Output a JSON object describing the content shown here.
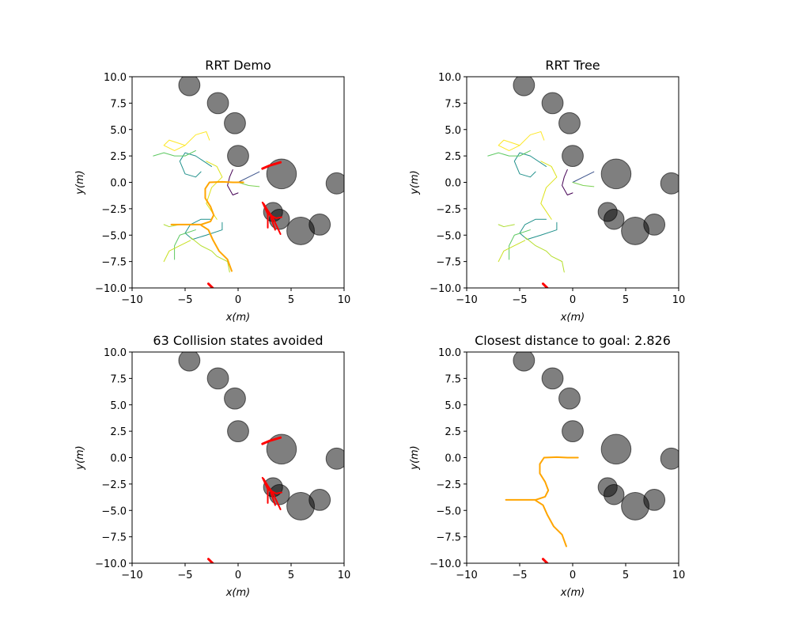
{
  "chart_data": [
    {
      "type": "line",
      "title": "RRT Demo",
      "xlabel": "x(m)",
      "ylabel": "y(m)",
      "xlim": [
        -10,
        10
      ],
      "ylim": [
        -10,
        10
      ],
      "xticks": [
        {
          "value": -10,
          "label": "−10"
        },
        {
          "value": -5,
          "label": "−5"
        },
        0,
        5,
        10
      ],
      "yticks": [
        {
          "value": -10,
          "label": "−10.0"
        },
        {
          "value": -7.5,
          "label": "−7.5"
        },
        {
          "value": -5,
          "label": "−5.0"
        },
        {
          "value": -2.5,
          "label": "−2.5"
        },
        {
          "value": 0,
          "label": "0.0"
        },
        2.5,
        {
          "value": 5,
          "label": "5.0"
        },
        7.5,
        {
          "value": 10,
          "label": "10.0"
        }
      ],
      "obstacles": {
        "color": "#000000",
        "x": [
          -4.6,
          -1.9,
          -0.3,
          0,
          4.1,
          9.3,
          3.3,
          3.9,
          5.9,
          7.7
        ],
        "y": [
          9.2,
          7.5,
          5.6,
          2.5,
          0.8,
          -0.1,
          -2.8,
          -3.5,
          -4.6,
          -4.0
        ],
        "r": [
          1,
          1,
          1,
          1,
          1.4,
          1,
          0.9,
          0.95,
          1.3,
          1
        ]
      },
      "series": [
        {
          "color": "#440154",
          "width": 1,
          "x": [
            -0.5,
            -0.8,
            -1,
            -0.5,
            0
          ],
          "values": [
            1.2,
            0.5,
            -0.3,
            -1.2,
            -1
          ]
        },
        {
          "color": "#3b528b",
          "width": 1,
          "x": [
            0,
            1,
            2
          ],
          "values": [
            0,
            0.5,
            1
          ]
        },
        {
          "color": "#21918c",
          "width": 1,
          "x": [
            -2.5,
            -4,
            -5,
            -5.5,
            -5,
            -4,
            -3.5
          ],
          "values": [
            1.5,
            2.5,
            2.8,
            2,
            0.8,
            0.5,
            1
          ]
        },
        {
          "color": "#fde725",
          "width": 1,
          "x": [
            -5,
            -6.5,
            -7,
            -6,
            -5,
            -4,
            -3,
            -2.7
          ],
          "values": [
            3.5,
            4,
            3.5,
            3,
            3.5,
            4.5,
            4.8,
            4
          ]
        },
        {
          "color": "#5ec962",
          "width": 1,
          "x": [
            -4,
            -5,
            -6,
            -7,
            -8
          ],
          "values": [
            3,
            2.5,
            2.5,
            2.8,
            2.5
          ]
        },
        {
          "color": "#dde318",
          "width": 1,
          "x": [
            -3,
            -2,
            -1.5,
            -2.5,
            -3,
            -2
          ],
          "values": [
            2,
            1.5,
            0.5,
            -0.5,
            -2,
            -3.5
          ]
        },
        {
          "color": "#7ad151",
          "width": 1,
          "x": [
            0,
            1,
            2
          ],
          "values": [
            0,
            -0.3,
            -0.4
          ]
        },
        {
          "color": "#21918c",
          "width": 1,
          "x": [
            -2.5,
            -3.5,
            -4.5,
            -5,
            -4.3,
            -3,
            -1.5,
            -1.5
          ],
          "values": [
            -3.5,
            -3.5,
            -4,
            -4.8,
            -5.4,
            -5,
            -4.5,
            -3.8
          ]
        },
        {
          "color": "#5ec962",
          "width": 1,
          "x": [
            -4,
            -5.5,
            -6,
            -6
          ],
          "values": [
            -4.5,
            -5,
            -6,
            -7.3
          ]
        },
        {
          "color": "#b5de2b",
          "width": 1,
          "x": [
            -4.5,
            -3.5,
            -2.5,
            -2,
            -1,
            -0.8
          ],
          "values": [
            -5.2,
            -6,
            -6.5,
            -7,
            -7.5,
            -8.5
          ]
        },
        {
          "color": "#addc30",
          "width": 1,
          "x": [
            -5.5,
            -6.5,
            -7
          ],
          "values": [
            -4,
            -4.2,
            -4
          ]
        },
        {
          "color": "#c8e020",
          "width": 1,
          "x": [
            -4.5,
            -5.5,
            -6.5,
            -7
          ],
          "values": [
            -5.5,
            -6,
            -6.5,
            -7.5
          ]
        },
        {
          "color": "#ffa500",
          "width": 2,
          "x": [
            0.5,
            -0.5,
            -1.5,
            -2.7,
            -3.1,
            -3.1,
            -2.6,
            -2.3,
            -2.6,
            -3.5,
            -4.5,
            -6.3
          ],
          "values": [
            0,
            0,
            0.05,
            0,
            -0.6,
            -1.5,
            -2.3,
            -3.1,
            -3.7,
            -4,
            -4,
            -4
          ]
        },
        {
          "color": "#ffa500",
          "width": 2,
          "x": [
            -3.5,
            -2.8,
            -2.4,
            -1.8,
            -1,
            -0.6
          ],
          "values": [
            -4.05,
            -4.5,
            -5.4,
            -6.5,
            -7.3,
            -8.4
          ]
        },
        {
          "color": "#ff0000",
          "width": 3,
          "x": [
            2.3,
            3,
            4
          ],
          "values": [
            1.3,
            1.6,
            1.9
          ]
        },
        {
          "color": "#ff0000",
          "width": 2,
          "x": [
            2.3,
            2.8,
            2.8
          ],
          "values": [
            -1.9,
            -3,
            -4.3
          ]
        },
        {
          "color": "#ff0000",
          "width": 2,
          "x": [
            2.4,
            3,
            3.5
          ],
          "values": [
            -2,
            -3,
            -4.5
          ]
        },
        {
          "color": "#ff0000",
          "width": 2,
          "x": [
            2.5,
            3.2,
            4
          ],
          "values": [
            -2.3,
            -3.2,
            -4.9
          ]
        },
        {
          "color": "#ff0000",
          "width": 2,
          "x": [
            2.8,
            3.6,
            4.1
          ],
          "values": [
            -3,
            -3.4,
            -3.3
          ]
        },
        {
          "color": "#ff0000",
          "width": 3,
          "x": [
            -2.8,
            -2.4
          ],
          "values": [
            -9.6,
            -10
          ]
        }
      ]
    },
    {
      "type": "line",
      "title": "RRT Tree",
      "xlabel": "x(m)",
      "ylabel": "y(m)",
      "xlim": [
        -10,
        10
      ],
      "ylim": [
        -10,
        10
      ],
      "xticks": [
        {
          "value": -10,
          "label": "−10"
        },
        {
          "value": -5,
          "label": "−5"
        },
        0,
        5,
        10
      ],
      "yticks": [
        {
          "value": -10,
          "label": "−10.0"
        },
        {
          "value": -7.5,
          "label": "−7.5"
        },
        {
          "value": -5,
          "label": "−5.0"
        },
        {
          "value": -2.5,
          "label": "−2.5"
        },
        {
          "value": 0,
          "label": "0.0"
        },
        2.5,
        {
          "value": 5,
          "label": "5.0"
        },
        7.5,
        {
          "value": 10,
          "label": "10.0"
        }
      ],
      "obstacles": {
        "color": "#000000",
        "x": [
          -4.6,
          -1.9,
          -0.3,
          0,
          4.1,
          9.3,
          3.3,
          3.9,
          5.9,
          7.7
        ],
        "y": [
          9.2,
          7.5,
          5.6,
          2.5,
          0.8,
          -0.1,
          -2.8,
          -3.5,
          -4.6,
          -4.0
        ],
        "r": [
          1,
          1,
          1,
          1,
          1.4,
          1,
          0.9,
          0.95,
          1.3,
          1
        ]
      },
      "series": [
        {
          "color": "#440154",
          "width": 1,
          "x": [
            -0.5,
            -0.8,
            -1,
            -0.5,
            0
          ],
          "values": [
            1.2,
            0.5,
            -0.3,
            -1.2,
            -1
          ]
        },
        {
          "color": "#3b528b",
          "width": 1,
          "x": [
            0,
            1,
            2
          ],
          "values": [
            0,
            0.5,
            1
          ]
        },
        {
          "color": "#21918c",
          "width": 1,
          "x": [
            -2.5,
            -4,
            -5,
            -5.5,
            -5,
            -4,
            -3.5
          ],
          "values": [
            1.5,
            2.5,
            2.8,
            2,
            0.8,
            0.5,
            1
          ]
        },
        {
          "color": "#fde725",
          "width": 1,
          "x": [
            -5,
            -6.5,
            -7,
            -6,
            -5,
            -4,
            -3,
            -2.7
          ],
          "values": [
            3.5,
            4,
            3.5,
            3,
            3.5,
            4.5,
            4.8,
            4
          ]
        },
        {
          "color": "#5ec962",
          "width": 1,
          "x": [
            -4,
            -5,
            -6,
            -7,
            -8
          ],
          "values": [
            3,
            2.5,
            2.5,
            2.8,
            2.5
          ]
        },
        {
          "color": "#dde318",
          "width": 1,
          "x": [
            -3,
            -2,
            -1.5,
            -2.5,
            -3,
            -2
          ],
          "values": [
            2,
            1.5,
            0.5,
            -0.5,
            -2,
            -3.5
          ]
        },
        {
          "color": "#7ad151",
          "width": 1,
          "x": [
            0,
            1,
            2
          ],
          "values": [
            0,
            -0.3,
            -0.4
          ]
        },
        {
          "color": "#21918c",
          "width": 1,
          "x": [
            -2.5,
            -3.5,
            -4.5,
            -5,
            -4.3,
            -3,
            -1.5,
            -1.5
          ],
          "values": [
            -3.5,
            -3.5,
            -4,
            -4.8,
            -5.4,
            -5,
            -4.5,
            -3.8
          ]
        },
        {
          "color": "#5ec962",
          "width": 1,
          "x": [
            -4,
            -5.5,
            -6,
            -6
          ],
          "values": [
            -4.5,
            -5,
            -6,
            -7.3
          ]
        },
        {
          "color": "#b5de2b",
          "width": 1,
          "x": [
            -4.5,
            -3.5,
            -2.5,
            -2,
            -1,
            -0.8
          ],
          "values": [
            -5.2,
            -6,
            -6.5,
            -7,
            -7.5,
            -8.5
          ]
        },
        {
          "color": "#addc30",
          "width": 1,
          "x": [
            -5.5,
            -6.5,
            -7
          ],
          "values": [
            -4,
            -4.2,
            -4
          ]
        },
        {
          "color": "#c8e020",
          "width": 1,
          "x": [
            -4.5,
            -5.5,
            -6.5,
            -7
          ],
          "values": [
            -5.5,
            -6,
            -6.5,
            -7.5
          ]
        },
        {
          "color": "#ff0000",
          "width": 3,
          "x": [
            -2.8,
            -2.4
          ],
          "values": [
            -9.6,
            -10
          ]
        }
      ]
    },
    {
      "type": "line",
      "title": "63 Collision states avoided",
      "xlabel": "x(m)",
      "ylabel": "y(m)",
      "xlim": [
        -10,
        10
      ],
      "ylim": [
        -10,
        10
      ],
      "xticks": [
        {
          "value": -10,
          "label": "−10"
        },
        {
          "value": -5,
          "label": "−5"
        },
        0,
        5,
        10
      ],
      "yticks": [
        {
          "value": -10,
          "label": "−10.0"
        },
        {
          "value": -7.5,
          "label": "−7.5"
        },
        {
          "value": -5,
          "label": "−5.0"
        },
        {
          "value": -2.5,
          "label": "−2.5"
        },
        {
          "value": 0,
          "label": "0.0"
        },
        2.5,
        {
          "value": 5,
          "label": "5.0"
        },
        7.5,
        {
          "value": 10,
          "label": "10.0"
        }
      ],
      "obstacles": {
        "color": "#000000",
        "x": [
          -4.6,
          -1.9,
          -0.3,
          0,
          4.1,
          9.3,
          3.3,
          3.9,
          5.9,
          7.7
        ],
        "y": [
          9.2,
          7.5,
          5.6,
          2.5,
          0.8,
          -0.1,
          -2.8,
          -3.5,
          -4.6,
          -4.0
        ],
        "r": [
          1,
          1,
          1,
          1,
          1.4,
          1,
          0.9,
          0.95,
          1.3,
          1
        ]
      },
      "series": [
        {
          "color": "#ff0000",
          "width": 3,
          "x": [
            2.3,
            3,
            4
          ],
          "values": [
            1.3,
            1.6,
            1.9
          ]
        },
        {
          "color": "#ff0000",
          "width": 2,
          "x": [
            2.3,
            2.8,
            2.8
          ],
          "values": [
            -1.9,
            -3,
            -4.3
          ]
        },
        {
          "color": "#ff0000",
          "width": 2,
          "x": [
            2.4,
            3,
            3.5
          ],
          "values": [
            -2,
            -3,
            -4.5
          ]
        },
        {
          "color": "#ff0000",
          "width": 2,
          "x": [
            2.5,
            3.2,
            4
          ],
          "values": [
            -2.3,
            -3.2,
            -4.9
          ]
        },
        {
          "color": "#ff0000",
          "width": 2,
          "x": [
            2.8,
            3.6,
            4.1
          ],
          "values": [
            -3,
            -3.4,
            -3.3
          ]
        },
        {
          "color": "#ff0000",
          "width": 3,
          "x": [
            -2.8,
            -2.4
          ],
          "values": [
            -9.6,
            -10
          ]
        }
      ]
    },
    {
      "type": "line",
      "title": "Closest distance to goal: 2.826",
      "xlabel": "x(m)",
      "ylabel": "y(m)",
      "xlim": [
        -10,
        10
      ],
      "ylim": [
        -10,
        10
      ],
      "xticks": [
        {
          "value": -10,
          "label": "−10"
        },
        {
          "value": -5,
          "label": "−5"
        },
        0,
        5,
        10
      ],
      "yticks": [
        {
          "value": -10,
          "label": "−10.0"
        },
        {
          "value": -7.5,
          "label": "−7.5"
        },
        {
          "value": -5,
          "label": "−5.0"
        },
        {
          "value": -2.5,
          "label": "−2.5"
        },
        {
          "value": 0,
          "label": "0.0"
        },
        2.5,
        {
          "value": 5,
          "label": "5.0"
        },
        7.5,
        {
          "value": 10,
          "label": "10.0"
        }
      ],
      "obstacles": {
        "color": "#000000",
        "x": [
          -4.6,
          -1.9,
          -0.3,
          0,
          4.1,
          9.3,
          3.3,
          3.9,
          5.9,
          7.7
        ],
        "y": [
          9.2,
          7.5,
          5.6,
          2.5,
          0.8,
          -0.1,
          -2.8,
          -3.5,
          -4.6,
          -4.0
        ],
        "r": [
          1,
          1,
          1,
          1,
          1.4,
          1,
          0.9,
          0.95,
          1.3,
          1
        ]
      },
      "series": [
        {
          "color": "#ffa500",
          "width": 2,
          "x": [
            0.5,
            -0.5,
            -1.5,
            -2.7,
            -3.1,
            -3.1,
            -2.6,
            -2.3,
            -2.6,
            -3.5,
            -4.5,
            -6.3
          ],
          "values": [
            0,
            0,
            0.05,
            0,
            -0.6,
            -1.5,
            -2.3,
            -3.1,
            -3.7,
            -4,
            -4,
            -4
          ]
        },
        {
          "color": "#ffa500",
          "width": 2,
          "x": [
            -3.5,
            -2.8,
            -2.4,
            -1.8,
            -1,
            -0.6
          ],
          "values": [
            -4.05,
            -4.5,
            -5.4,
            -6.5,
            -7.3,
            -8.4
          ]
        },
        {
          "color": "#ff0000",
          "width": 3,
          "x": [
            -2.8,
            -2.4
          ],
          "values": [
            -9.6,
            -10
          ]
        }
      ]
    }
  ]
}
